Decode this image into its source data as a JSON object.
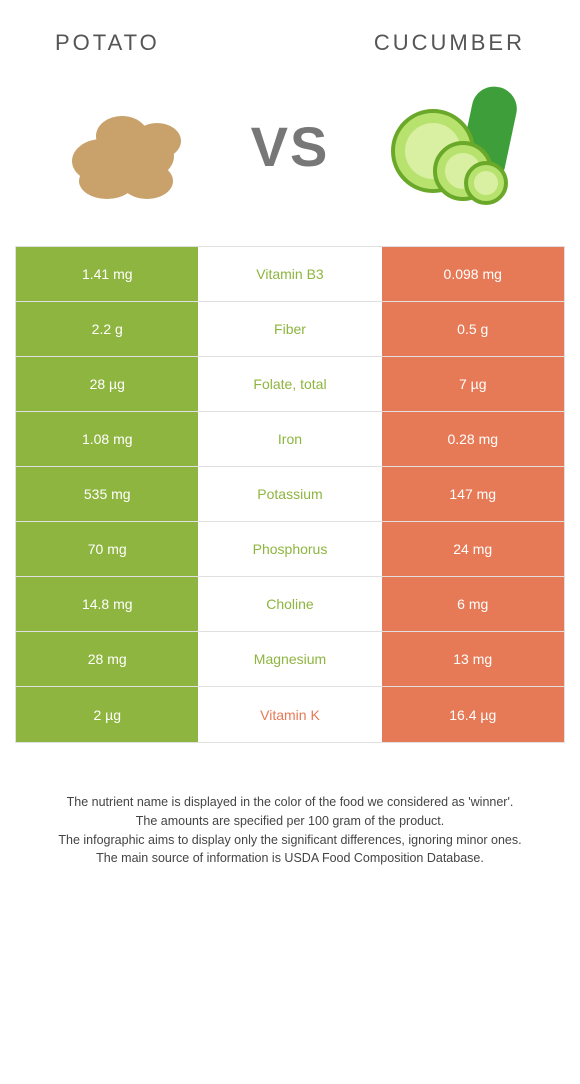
{
  "header": {
    "left_title": "Potato",
    "right_title": "Cucumber",
    "vs_label": "VS"
  },
  "colors": {
    "potato": "#8eb53f",
    "cucumber": "#e77a56",
    "potato_text": "#8eb53f",
    "cucumber_text": "#e77a56"
  },
  "nutrients": [
    {
      "name": "Vitamin B3",
      "left": "1.41 mg",
      "right": "0.098 mg",
      "winner": "left"
    },
    {
      "name": "Fiber",
      "left": "2.2 g",
      "right": "0.5 g",
      "winner": "left"
    },
    {
      "name": "Folate, total",
      "left": "28 µg",
      "right": "7 µg",
      "winner": "left"
    },
    {
      "name": "Iron",
      "left": "1.08 mg",
      "right": "0.28 mg",
      "winner": "left"
    },
    {
      "name": "Potassium",
      "left": "535 mg",
      "right": "147 mg",
      "winner": "left"
    },
    {
      "name": "Phosphorus",
      "left": "70 mg",
      "right": "24 mg",
      "winner": "left"
    },
    {
      "name": "Choline",
      "left": "14.8 mg",
      "right": "6 mg",
      "winner": "left"
    },
    {
      "name": "Magnesium",
      "left": "28 mg",
      "right": "13 mg",
      "winner": "left"
    },
    {
      "name": "Vitamin K",
      "left": "2 µg",
      "right": "16.4 µg",
      "winner": "right"
    }
  ],
  "footer": {
    "line1": "The nutrient name is displayed in the color of the food we considered as 'winner'.",
    "line2": "The amounts are specified per 100 gram of the product.",
    "line3": "The infographic aims to display only the significant differences, ignoring minor ones.",
    "line4": "The main source of information is USDA Food Composition Database."
  }
}
